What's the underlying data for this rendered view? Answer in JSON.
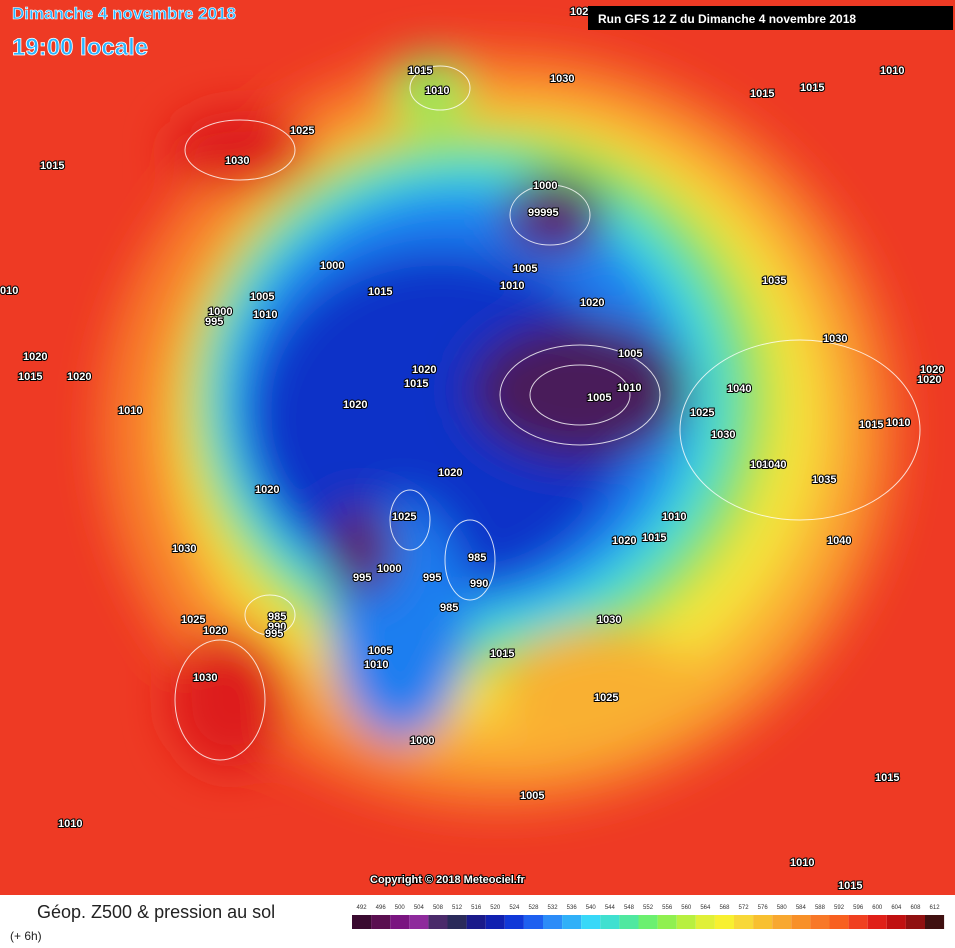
{
  "header": {
    "date": "Dimanche 4 novembre 2018",
    "time": "19:00 locale",
    "run": "Run GFS 12 Z du Dimanche 4 novembre 2018"
  },
  "copyright": "Copyright © 2018 Meteociel.fr",
  "pressure_labels": [
    "1025",
    "1015",
    "1010",
    "1030",
    "1010",
    "1015",
    "1015",
    "1025",
    "1030",
    "1015",
    "1000",
    "99995",
    "1005",
    "1010",
    "1000",
    "1015",
    "1035",
    "1005",
    "1010",
    "1000",
    "995",
    "1020",
    "1030",
    "1005",
    "1020",
    "1015",
    "1020",
    "1020",
    "1015",
    "1010",
    "1005",
    "1040",
    "1020",
    "1010",
    "1020",
    "1025",
    "1030",
    "1015",
    "1010",
    "1020",
    "1040",
    "1035",
    "1020",
    "1025",
    "1010",
    "1020",
    "1015",
    "1040",
    "985",
    "1030",
    "990",
    "995",
    "995",
    "1000",
    "985",
    "1030",
    "985",
    "990",
    "995",
    "1025",
    "1020",
    "1005",
    "1010",
    "1015",
    "1030",
    "1025",
    "1000",
    "1005",
    "1015",
    "1010",
    "1010",
    "1015",
    "010",
    "1020",
    "1040"
  ],
  "legend": {
    "title": "Géop. Z500 & pression au sol",
    "lead": "(+ 6h)",
    "scale": [
      492,
      496,
      500,
      504,
      508,
      512,
      516,
      520,
      524,
      528,
      532,
      536,
      540,
      544,
      548,
      552,
      556,
      560,
      564,
      568,
      572,
      576,
      580,
      584,
      588,
      592,
      596,
      600,
      604,
      608,
      612
    ]
  }
}
